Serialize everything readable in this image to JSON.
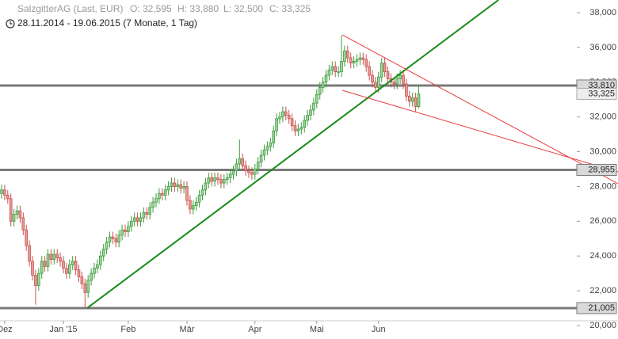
{
  "chart_data": {
    "type": "candlestick",
    "title": "SalzgitterAG (Last, EUR)",
    "ohlc_labels": [
      "O: 32,595",
      "H: 33,880",
      "L: 32,500",
      "C: 33,325"
    ],
    "subtitle": "28.11.2014 - 19.06.2015 (7 Monate, 1 Tag)",
    "categories": [
      null,
      "Dez",
      null,
      null,
      null,
      null,
      null,
      null,
      null,
      null,
      null,
      null,
      null,
      null,
      null,
      null,
      null,
      null,
      null,
      null,
      "Jan '15",
      null,
      null,
      null,
      null,
      null,
      null,
      null,
      null,
      null,
      null,
      null,
      null,
      null,
      null,
      null,
      null,
      null,
      null,
      null,
      null,
      "Feb",
      null,
      null,
      null,
      null,
      null,
      null,
      null,
      null,
      null,
      null,
      null,
      null,
      null,
      null,
      null,
      null,
      null,
      null,
      "Mär",
      null,
      null,
      null,
      null,
      null,
      null,
      null,
      null,
      null,
      null,
      null,
      null,
      null,
      null,
      null,
      null,
      null,
      null,
      null,
      null,
      null,
      "Apr",
      null,
      null,
      null,
      null,
      null,
      null,
      null,
      null,
      null,
      null,
      null,
      null,
      null,
      null,
      null,
      null,
      null,
      null,
      null,
      "Mai",
      null,
      null,
      null,
      null,
      null,
      null,
      null,
      null,
      null,
      null,
      null,
      null,
      null,
      null,
      null,
      null,
      null,
      null,
      null,
      "Jun",
      null,
      null,
      null,
      null,
      null,
      null,
      null,
      null,
      null,
      null,
      null,
      null,
      null
    ],
    "open": [
      27.6,
      27.8,
      27.5,
      27.3,
      26.0,
      26.4,
      26.6,
      26.2,
      25.5,
      24.6,
      23.7,
      22.9,
      22.3,
      23.0,
      23.7,
      23.4,
      24.1,
      23.8,
      24.1,
      23.9,
      23.7,
      23.3,
      23.0,
      23.5,
      23.7,
      23.2,
      22.8,
      22.4,
      21.9,
      22.6,
      23.0,
      23.3,
      23.5,
      24.0,
      24.4,
      24.8,
      25.1,
      25.0,
      24.8,
      25.2,
      25.5,
      25.4,
      25.7,
      26.0,
      26.2,
      26.0,
      26.2,
      26.5,
      26.4,
      26.8,
      27.1,
      27.3,
      27.6,
      27.5,
      27.8,
      28.0,
      28.2,
      28.0,
      28.1,
      27.9,
      28.0,
      27.2,
      26.7,
      26.9,
      27.1,
      27.5,
      27.8,
      28.2,
      28.5,
      28.3,
      28.5,
      28.4,
      28.2,
      28.4,
      28.5,
      28.7,
      28.9,
      29.3,
      29.6,
      29.2,
      28.9,
      28.8,
      28.7,
      29.0,
      29.4,
      29.8,
      30.1,
      30.3,
      30.5,
      31.2,
      31.9,
      32.0,
      32.3,
      32.1,
      31.9,
      31.5,
      31.2,
      31.3,
      31.4,
      31.8,
      32.1,
      32.4,
      32.8,
      33.3,
      33.7,
      34.0,
      34.4,
      34.7,
      34.9,
      34.6,
      34.6,
      35.2,
      35.8,
      35.4,
      35.1,
      35.2,
      35.3,
      35.4,
      35.3,
      34.9,
      34.4,
      34.0,
      33.7,
      34.3,
      35.1,
      34.6,
      34.2,
      34.0,
      33.9,
      34.2,
      34.4,
      33.9,
      33.2,
      32.9,
      33.1,
      32.595
    ],
    "high": [
      28.1,
      28.1,
      27.8,
      27.6,
      26.7,
      26.9,
      26.9,
      26.5,
      25.8,
      24.9,
      24.0,
      23.2,
      23.3,
      24.0,
      24.0,
      24.4,
      24.4,
      24.4,
      24.4,
      24.2,
      24.0,
      23.6,
      23.8,
      24.0,
      24.0,
      23.5,
      23.1,
      22.7,
      22.9,
      23.3,
      23.6,
      23.8,
      24.3,
      24.7,
      25.1,
      25.4,
      25.4,
      25.3,
      25.5,
      25.8,
      25.8,
      26.0,
      26.3,
      26.5,
      26.5,
      26.5,
      26.8,
      26.8,
      27.1,
      27.4,
      27.6,
      27.9,
      27.9,
      28.1,
      28.3,
      28.5,
      28.5,
      28.4,
      28.4,
      28.3,
      28.3,
      27.5,
      27.2,
      27.4,
      27.8,
      28.1,
      28.5,
      28.8,
      28.8,
      28.8,
      28.8,
      28.7,
      28.7,
      28.8,
      29.0,
      29.2,
      29.6,
      30.7,
      29.9,
      29.5,
      29.2,
      29.1,
      29.3,
      29.7,
      30.1,
      30.4,
      30.6,
      30.8,
      31.5,
      32.2,
      32.3,
      32.6,
      32.6,
      32.4,
      32.2,
      31.8,
      31.6,
      31.7,
      32.1,
      32.4,
      32.7,
      33.1,
      33.6,
      34.0,
      34.3,
      34.7,
      35.0,
      35.2,
      35.2,
      34.9,
      36.7,
      36.1,
      36.1,
      35.7,
      35.5,
      35.6,
      35.7,
      35.7,
      35.6,
      35.2,
      34.7,
      34.3,
      34.6,
      35.4,
      35.4,
      34.9,
      34.5,
      34.2,
      34.5,
      34.7,
      34.7,
      34.2,
      33.5,
      33.4,
      33.4,
      33.88
    ],
    "low": [
      27.3,
      27.2,
      27.0,
      25.7,
      25.7,
      26.1,
      25.9,
      25.2,
      24.3,
      23.4,
      22.6,
      21.2,
      22.0,
      22.7,
      23.1,
      23.1,
      23.5,
      23.5,
      23.6,
      23.4,
      23.0,
      22.7,
      22.7,
      23.2,
      22.9,
      22.5,
      22.1,
      21.005,
      21.6,
      22.3,
      22.7,
      23.0,
      23.2,
      23.7,
      24.1,
      24.5,
      24.7,
      24.5,
      24.5,
      24.9,
      25.1,
      25.1,
      25.4,
      25.7,
      25.7,
      25.7,
      25.9,
      26.1,
      26.1,
      26.5,
      26.8,
      27.0,
      27.2,
      27.2,
      27.5,
      27.7,
      27.7,
      27.7,
      27.6,
      27.6,
      26.9,
      26.4,
      26.4,
      26.6,
      26.8,
      27.2,
      27.5,
      27.9,
      28.0,
      28.0,
      28.1,
      27.9,
      27.9,
      28.1,
      28.2,
      28.4,
      28.6,
      29.0,
      28.9,
      28.6,
      28.5,
      28.4,
      28.4,
      28.7,
      29.1,
      29.5,
      29.8,
      30.0,
      30.2,
      30.9,
      31.6,
      31.7,
      31.8,
      31.6,
      31.2,
      30.9,
      30.9,
      31.0,
      31.1,
      31.5,
      31.8,
      32.1,
      32.5,
      33.0,
      33.4,
      33.7,
      34.1,
      34.4,
      34.3,
      34.3,
      34.3,
      34.9,
      35.1,
      34.8,
      34.8,
      34.9,
      35.0,
      35.0,
      34.6,
      34.1,
      33.7,
      33.4,
      33.4,
      34.0,
      34.3,
      33.9,
      33.7,
      33.6,
      33.6,
      33.9,
      33.6,
      32.9,
      32.6,
      32.6,
      32.3,
      32.5
    ],
    "close": [
      27.8,
      27.5,
      27.3,
      26.0,
      26.4,
      26.6,
      26.2,
      25.5,
      24.6,
      23.7,
      22.9,
      22.3,
      23.0,
      23.7,
      23.4,
      24.1,
      23.8,
      24.1,
      23.9,
      23.7,
      23.3,
      23.0,
      23.5,
      23.7,
      23.2,
      22.8,
      22.4,
      21.9,
      22.6,
      23.0,
      23.3,
      23.5,
      24.0,
      24.4,
      24.8,
      25.1,
      25.0,
      24.8,
      25.2,
      25.5,
      25.4,
      25.7,
      26.0,
      26.2,
      26.0,
      26.2,
      26.5,
      26.4,
      26.8,
      27.1,
      27.3,
      27.6,
      27.5,
      27.8,
      28.0,
      28.2,
      28.0,
      28.1,
      27.9,
      28.0,
      27.2,
      26.7,
      26.9,
      27.1,
      27.5,
      27.8,
      28.2,
      28.5,
      28.3,
      28.5,
      28.4,
      28.2,
      28.4,
      28.5,
      28.7,
      28.9,
      29.3,
      29.6,
      29.2,
      28.9,
      28.8,
      28.7,
      29.0,
      29.4,
      29.8,
      30.1,
      30.3,
      30.5,
      31.2,
      31.9,
      32.0,
      32.3,
      32.1,
      31.9,
      31.5,
      31.2,
      31.3,
      31.4,
      31.8,
      32.1,
      32.4,
      32.8,
      33.3,
      33.7,
      34.0,
      34.4,
      34.7,
      34.9,
      34.6,
      34.6,
      35.2,
      35.8,
      35.4,
      35.1,
      35.2,
      35.3,
      35.4,
      35.3,
      34.9,
      34.4,
      34.0,
      33.7,
      34.3,
      35.1,
      34.6,
      34.2,
      34.0,
      33.9,
      34.2,
      34.4,
      33.9,
      33.2,
      32.9,
      33.1,
      32.6,
      33.325
    ],
    "up_color": "#3c9b3c",
    "down_color": "#c9504d",
    "ylim": [
      20,
      38
    ],
    "yticks": [
      {
        "value": 20,
        "label": "20,000"
      },
      {
        "value": 22,
        "label": "22,000"
      },
      {
        "value": 24,
        "label": "24,000"
      },
      {
        "value": 26,
        "label": "26,000"
      },
      {
        "value": 28,
        "label": "28,000"
      },
      {
        "value": 30,
        "label": "30,000"
      },
      {
        "value": 32,
        "label": "32,000"
      },
      {
        "value": 34,
        "label": "34,000"
      },
      {
        "value": 36,
        "label": "36,000"
      },
      {
        "value": 38,
        "label": "38,000"
      }
    ],
    "levels": [
      {
        "value": 33.81,
        "label": "33,810"
      },
      {
        "value": 28.955,
        "label": "28,955"
      },
      {
        "value": 21.005,
        "label": "21,005"
      }
    ],
    "level_color": "#7a7a7a",
    "last": {
      "value": 33.325,
      "label": "33,325"
    },
    "trendlines": [
      {
        "color": "#1a8a1a",
        "x": [
          27.7,
          160.8
        ],
        "y": [
          21.005,
          38.73
        ]
      },
      {
        "color": "#e8383d",
        "x": [
          110.3,
          199.5
        ],
        "y": [
          36.72,
          28.16
        ]
      },
      {
        "color": "#e8383d",
        "x": [
          110.3,
          199.5
        ],
        "y": [
          33.53,
          28.84
        ]
      }
    ]
  }
}
